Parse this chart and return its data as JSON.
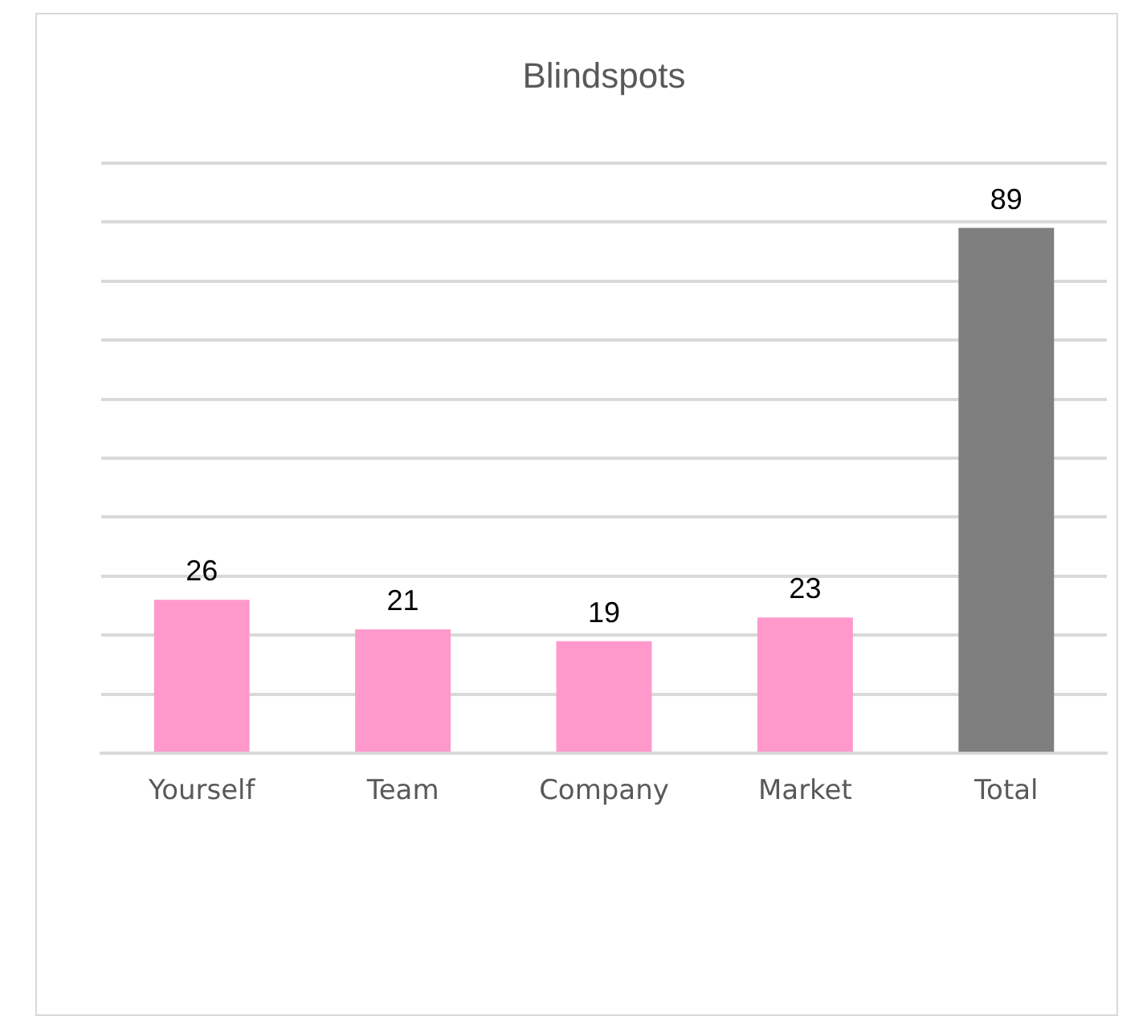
{
  "chart_data": {
    "type": "bar",
    "title": "Blindspots",
    "categories": [
      "Yourself",
      "Team",
      "Company",
      "Market",
      "Total"
    ],
    "values": [
      26,
      21,
      19,
      23,
      89
    ],
    "colors": [
      "#ff99cc",
      "#ff99cc",
      "#ff99cc",
      "#ff99cc",
      "#7f7f7f"
    ],
    "ylim": [
      0,
      100
    ],
    "yticks": [
      0,
      10,
      20,
      30,
      40,
      50,
      60,
      70,
      80,
      90,
      100
    ],
    "tick_labels": "x",
    "grid": "y",
    "data_labels": true,
    "legend": false
  }
}
